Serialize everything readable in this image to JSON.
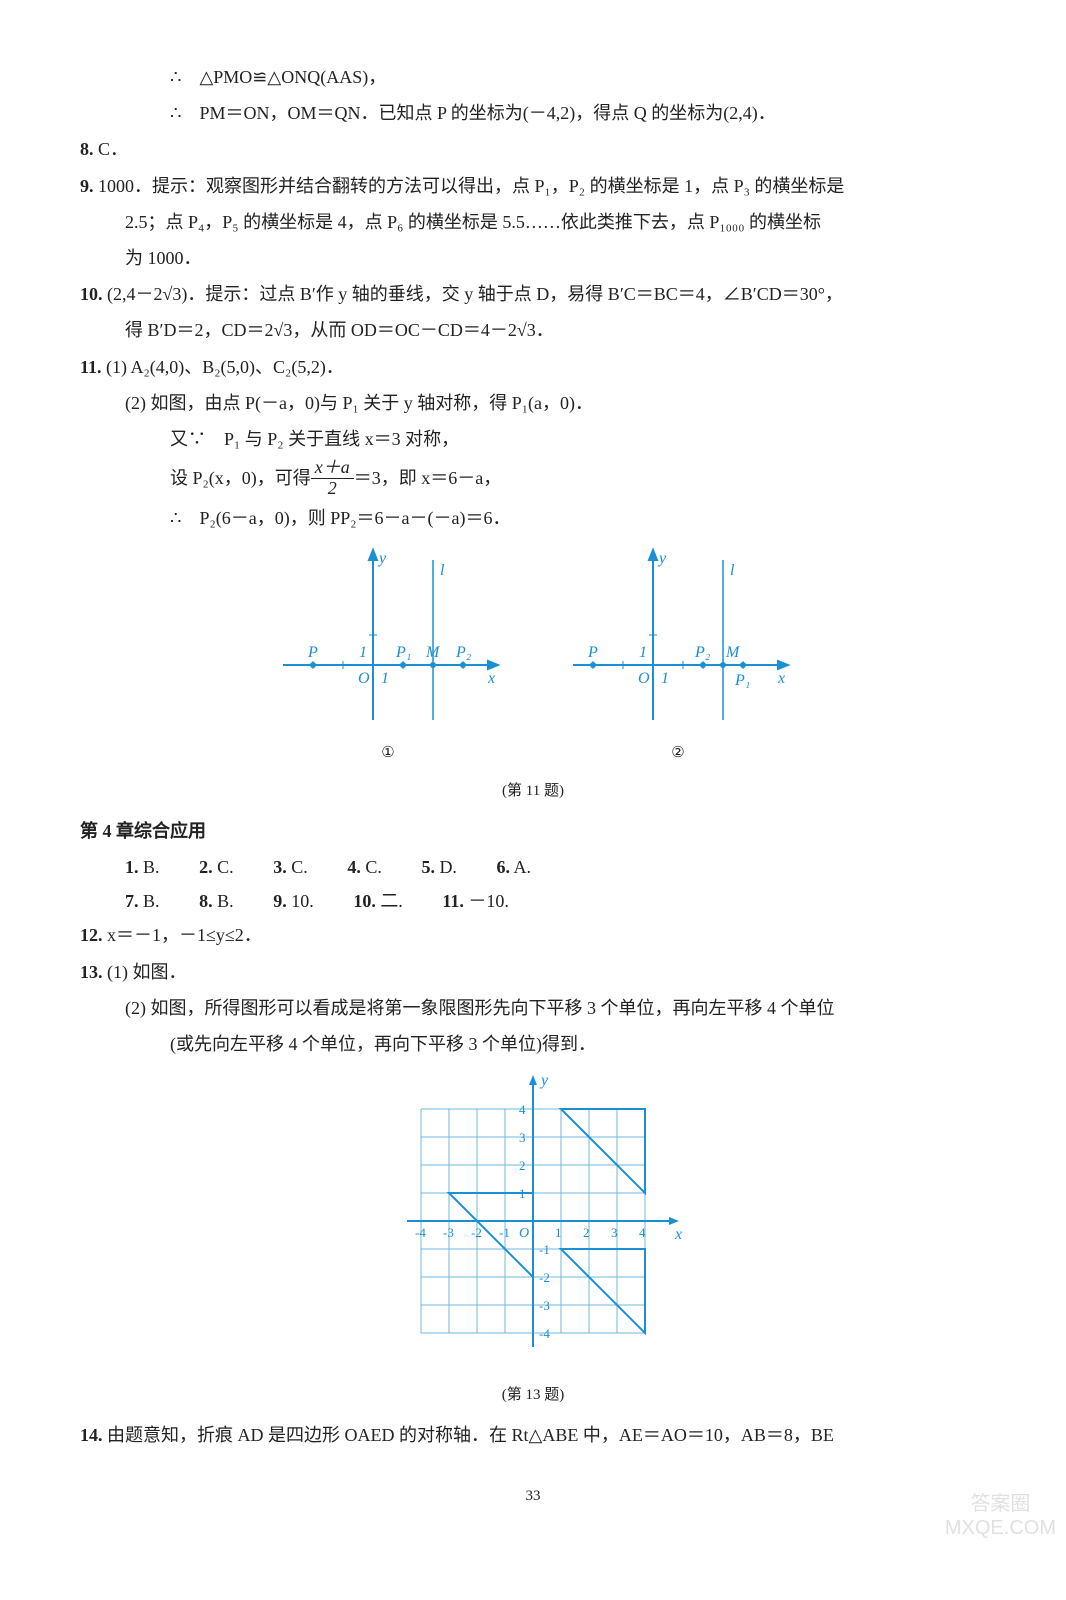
{
  "lines": {
    "l1": "∴　△PMO≌△ONQ(AAS)，",
    "l2": "∴　PM＝ON，OM＝QN．已知点 P 的坐标为(－4,2)，得点 Q 的坐标为(2,4)．",
    "l3": "C．",
    "l4a": "1000．提示：观察图形并结合翻转的方法可以得出，点 P₁，P₂ 的横坐标是 1，点 P₃ 的横坐标是",
    "l4b": "2.5；点 P₄，P₅ 的横坐标是 4，点 P₆ 的横坐标是 5.5……依此类推下去，点 P₁₀₀₀ 的横坐标",
    "l4c": "为 1000．",
    "l5a": "(2,4－2√3)．提示：过点 B′作 y 轴的垂线，交 y 轴于点 D，易得 B′C＝BC＝4，∠B′CD＝30°，",
    "l5b": "得 B′D＝2，CD＝2√3，从而 OD＝OC－CD＝4－2√3．",
    "l6": "(1) A₂(4,0)、B₂(5,0)、C₂(5,2)．",
    "l7": "(2) 如图，由点 P(－a，0)与 P₁ 关于 y 轴对称，得 P₁(a，0)．",
    "l8": "又∵　P₁ 与 P₂ 关于直线 x＝3 对称，",
    "l9a": "设 P₂(x，0)，可得",
    "l9b": "＝3，即 x＝6－a，",
    "l10": "∴　P₂(6－a，0)，则 PP₂＝6－a－(－a)＝6．",
    "section": "第 4 章综合应用",
    "l12": "x＝－1，－1≤y≤2．",
    "l13": "(1) 如图．",
    "l14a": "(2) 如图，所得图形可以看成是将第一象限图形先向下平移 3 个单位，再向左平移 4 个单位",
    "l14b": "(或先向左平移 4 个单位，再向下平移 3 个单位)得到．",
    "l15": "由题意知，折痕 AD 是四边形 OAED 的对称轴．在 Rt△ABE 中，AE＝AO＝10，AB＝8，BE"
  },
  "nums": {
    "n8": "8.",
    "n9": "9.",
    "n10": "10.",
    "n11": "11.",
    "n12": "12.",
    "n13": "13.",
    "n14": "14."
  },
  "answers1": [
    {
      "n": "1.",
      "v": "B."
    },
    {
      "n": "2.",
      "v": "C."
    },
    {
      "n": "3.",
      "v": "C."
    },
    {
      "n": "4.",
      "v": "C."
    },
    {
      "n": "5.",
      "v": "D."
    },
    {
      "n": "6.",
      "v": "A."
    }
  ],
  "answers2": [
    {
      "n": "7.",
      "v": "B."
    },
    {
      "n": "8.",
      "v": "B."
    },
    {
      "n": "9.",
      "v": "10."
    },
    {
      "n": "10.",
      "v": "二."
    },
    {
      "n": "11.",
      "v": "－10."
    }
  ],
  "fig11": {
    "axes_color": "#1a8fd4",
    "text_color": "#1a8fd4",
    "caption1": "①",
    "caption2": "②",
    "caption": "(第 11 题)",
    "labels": {
      "y": "y",
      "x": "x",
      "l": "l",
      "O": "O",
      "P": "P",
      "P1": "P₁",
      "P2": "P₂",
      "M": "M",
      "one": "1"
    }
  },
  "fig13": {
    "axes_color": "#1a8fd4",
    "grid_color": "#6fb8e0",
    "shape_color": "#1a8fd4",
    "caption": "(第 13 题)",
    "xticks": [
      "-4",
      "-3",
      "-2",
      "-1",
      "O",
      "1",
      "2",
      "3",
      "4"
    ],
    "yticks_pos": [
      "1",
      "2",
      "3",
      "4"
    ],
    "yticks_neg": [
      "-1",
      "-2",
      "-3",
      "-4"
    ],
    "x_label": "x",
    "y_label": "y"
  },
  "frac": {
    "num": "x＋a",
    "den": "2"
  },
  "page": "33",
  "watermark": {
    "top": "答案圈",
    "bottom": "MXQE.COM"
  }
}
